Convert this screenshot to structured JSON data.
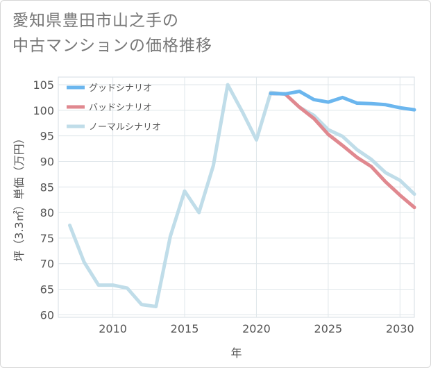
{
  "title_line1": "愛知県豊田市山之手の",
  "title_line2": "中古マンションの価格推移",
  "chart_data": {
    "type": "line",
    "xlabel": "年",
    "ylabel": "坪（3.3㎡）単価（万円）",
    "xlim": [
      2006.2,
      2031
    ],
    "ylim": [
      59.5,
      106.5
    ],
    "xticks": [
      2010,
      2015,
      2020,
      2025,
      2030
    ],
    "yticks": [
      60,
      65,
      70,
      75,
      80,
      85,
      90,
      95,
      100,
      105
    ],
    "grid": true,
    "legend_position": "top-left",
    "series": [
      {
        "name": "グッドシナリオ",
        "color": "#6bb6ee",
        "x": [
          2021,
          2022,
          2023,
          2024,
          2025,
          2026,
          2027,
          2028,
          2029,
          2030,
          2031
        ],
        "y": [
          103.3,
          103.2,
          103.7,
          102.1,
          101.6,
          102.5,
          101.4,
          101.3,
          101.1,
          100.5,
          100.1
        ]
      },
      {
        "name": "バッドシナリオ",
        "color": "#e0888f",
        "x": [
          2021,
          2022,
          2023,
          2024,
          2025,
          2026,
          2027,
          2028,
          2029,
          2030,
          2031
        ],
        "y": [
          103.3,
          103.2,
          100.6,
          98.4,
          95.3,
          93.1,
          90.8,
          89.0,
          86.0,
          83.4,
          81.0
        ]
      },
      {
        "name": "ノーマルシナリオ",
        "color": "#c0dde9",
        "x": [
          2007,
          2008,
          2009,
          2010,
          2011,
          2012,
          2013,
          2014,
          2015,
          2016,
          2017,
          2018,
          2019,
          2020,
          2021,
          2022,
          2023,
          2024,
          2025,
          2026,
          2027,
          2028,
          2029,
          2030,
          2031
        ],
        "y": [
          77.5,
          70.3,
          65.8,
          65.8,
          65.2,
          62.0,
          61.6,
          75.3,
          84.2,
          80.0,
          89.2,
          105.0,
          99.8,
          94.2,
          103.5,
          103.2,
          100.6,
          99.0,
          96.2,
          94.9,
          92.3,
          90.4,
          87.8,
          86.3,
          83.6
        ]
      }
    ]
  }
}
